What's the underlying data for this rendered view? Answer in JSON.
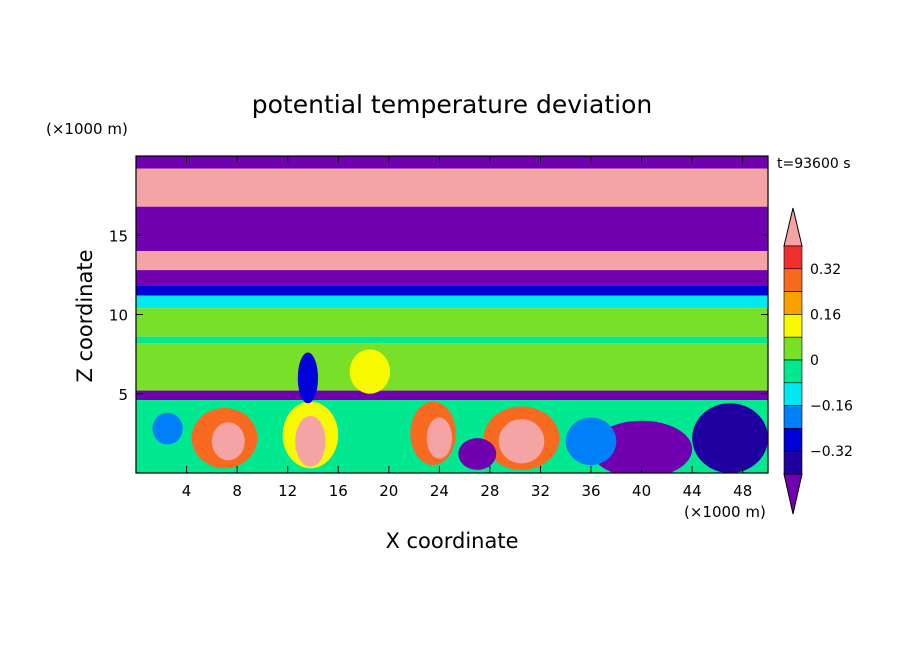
{
  "chart_data": {
    "type": "heatmap",
    "title": "potential temperature deviation",
    "xlabel": "X coordinate",
    "ylabel": "Z coordinate",
    "x_unit": "(×1000 m)",
    "y_unit": "(×1000 m)",
    "time_label": "t=93600 s",
    "xlim": [
      0,
      50
    ],
    "ylim": [
      0,
      20
    ],
    "x_ticks": [
      4,
      8,
      12,
      16,
      20,
      24,
      28,
      32,
      36,
      40,
      44,
      48
    ],
    "y_ticks": [
      5,
      10,
      15
    ],
    "colorbar": {
      "labels": [
        "0.32",
        "0.16",
        "0",
        "-0.16",
        "-0.32"
      ],
      "levels": [
        {
          "value": 0.4,
          "color": "#f4a4a4"
        },
        {
          "value": 0.32,
          "color": "#f03030"
        },
        {
          "value": 0.24,
          "color": "#f86a20"
        },
        {
          "value": 0.16,
          "color": "#f8a000"
        },
        {
          "value": 0.08,
          "color": "#f8f800"
        },
        {
          "value": 0.0,
          "color": "#78e028"
        },
        {
          "value": -0.08,
          "color": "#00e890"
        },
        {
          "value": -0.16,
          "color": "#00e8f0"
        },
        {
          "value": -0.24,
          "color": "#0080f8"
        },
        {
          "value": -0.32,
          "color": "#0000d8"
        },
        {
          "value": -0.4,
          "color": "#2000a0"
        },
        {
          "value": -0.48,
          "color": "#7000b0"
        }
      ]
    },
    "field_bands": [
      {
        "z": [
          19.2,
          20.0
        ],
        "value": -0.48
      },
      {
        "z": [
          16.8,
          19.2
        ],
        "value": 0.4
      },
      {
        "z": [
          14.0,
          16.8
        ],
        "value": -0.48
      },
      {
        "z": [
          12.8,
          14.0
        ],
        "value": 0.4
      },
      {
        "z": [
          11.8,
          12.8
        ],
        "value": -0.48
      },
      {
        "z": [
          11.2,
          11.8
        ],
        "value": -0.32
      },
      {
        "z": [
          10.4,
          11.2
        ],
        "value": -0.16
      },
      {
        "z": [
          8.6,
          10.4
        ],
        "value": 0.0
      },
      {
        "z": [
          8.2,
          8.6
        ],
        "value": -0.08
      },
      {
        "z": [
          5.2,
          8.2
        ],
        "value": 0.0
      },
      {
        "z": [
          4.6,
          5.2
        ],
        "value": -0.48
      },
      {
        "z": [
          0.0,
          4.6
        ],
        "value": -0.08
      }
    ],
    "features": [
      {
        "x": 7,
        "z": 2.2,
        "rx": 2.6,
        "rz": 1.9,
        "value": 0.24
      },
      {
        "x": 7.3,
        "z": 2.0,
        "rx": 1.3,
        "rz": 1.2,
        "value": 0.4
      },
      {
        "x": 13.8,
        "z": 2.4,
        "rx": 2.2,
        "rz": 2.1,
        "value": 0.08
      },
      {
        "x": 13.8,
        "z": 2.0,
        "rx": 1.2,
        "rz": 1.6,
        "value": 0.4
      },
      {
        "x": 13.6,
        "z": 6.0,
        "rx": 0.8,
        "rz": 1.6,
        "value": -0.32
      },
      {
        "x": 18.5,
        "z": 6.4,
        "rx": 1.6,
        "rz": 1.4,
        "value": 0.08
      },
      {
        "x": 23.5,
        "z": 2.5,
        "rx": 1.8,
        "rz": 2.0,
        "value": 0.24
      },
      {
        "x": 24,
        "z": 2.2,
        "rx": 1.0,
        "rz": 1.3,
        "value": 0.4
      },
      {
        "x": 30.5,
        "z": 2.2,
        "rx": 3.0,
        "rz": 2.0,
        "value": 0.24
      },
      {
        "x": 30.5,
        "z": 2.0,
        "rx": 1.8,
        "rz": 1.4,
        "value": 0.4
      },
      {
        "x": 40,
        "z": 1.5,
        "rx": 4.0,
        "rz": 1.8,
        "value": -0.48
      },
      {
        "x": 47,
        "z": 2.2,
        "rx": 3.0,
        "rz": 2.2,
        "value": -0.4
      },
      {
        "x": 2.5,
        "z": 2.8,
        "rx": 1.2,
        "rz": 1.0,
        "value": -0.24
      },
      {
        "x": 27,
        "z": 1.2,
        "rx": 1.5,
        "rz": 1.0,
        "value": -0.48
      },
      {
        "x": 36,
        "z": 2.0,
        "rx": 2.0,
        "rz": 1.5,
        "value": -0.24
      }
    ]
  }
}
